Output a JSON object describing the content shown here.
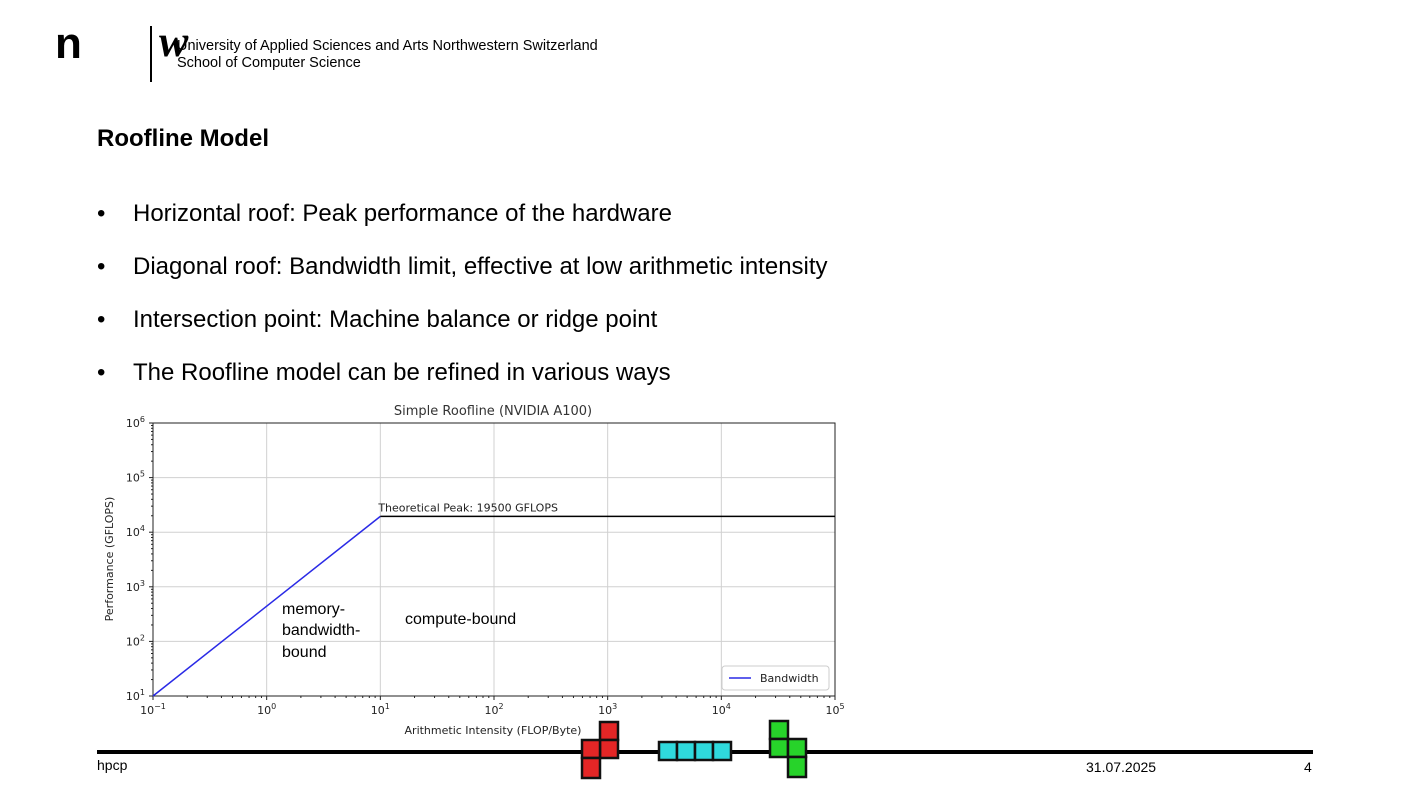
{
  "header": {
    "logo_n": "n",
    "logo_w": "w",
    "university": "University of Applied Sciences and Arts Northwestern Switzerland",
    "school": "School of Computer Science"
  },
  "slide": {
    "title": "Roofline Model",
    "bullet_glyph": "•",
    "bullets": [
      "Horizontal roof: Peak performance of the hardware",
      "Diagonal roof: Bandwidth limit, effective at low arithmetic intensity",
      "Intersection point: Machine balance or ridge point",
      "The Roofline model can be refined in various ways"
    ]
  },
  "chart_data": {
    "type": "line",
    "title": "Simple Roofline (NVIDIA A100)",
    "xlabel": "Arithmetic Intensity (FLOP/Byte)",
    "ylabel": "Performance (GFLOPS)",
    "xscale": "log",
    "yscale": "log",
    "xlim": [
      0.1,
      100000
    ],
    "ylim": [
      10,
      1000000
    ],
    "grid": true,
    "legend_position": "bottom-right",
    "x_tick_exponents": [
      "−1",
      "0",
      "1",
      "2",
      "3",
      "4",
      "5"
    ],
    "y_tick_exponents": [
      "1",
      "2",
      "3",
      "4",
      "5",
      "6"
    ],
    "series": [
      {
        "name": "Bandwidth",
        "color": "#2a2ae6",
        "x": [
          0.1,
          10
        ],
        "y": [
          10,
          19500
        ]
      },
      {
        "color": "#000000",
        "x": [
          10,
          100000
        ],
        "y": [
          19500,
          19500
        ]
      }
    ],
    "annotations": {
      "peak": "Theoretical Peak: 19500 GFLOPS",
      "memory_line1": "memory-",
      "memory_line2": "bandwidth-",
      "memory_line3": "bound",
      "compute": "compute-bound"
    }
  },
  "footer": {
    "left": "hpcp",
    "date": "31.07.2025",
    "page": "4"
  }
}
